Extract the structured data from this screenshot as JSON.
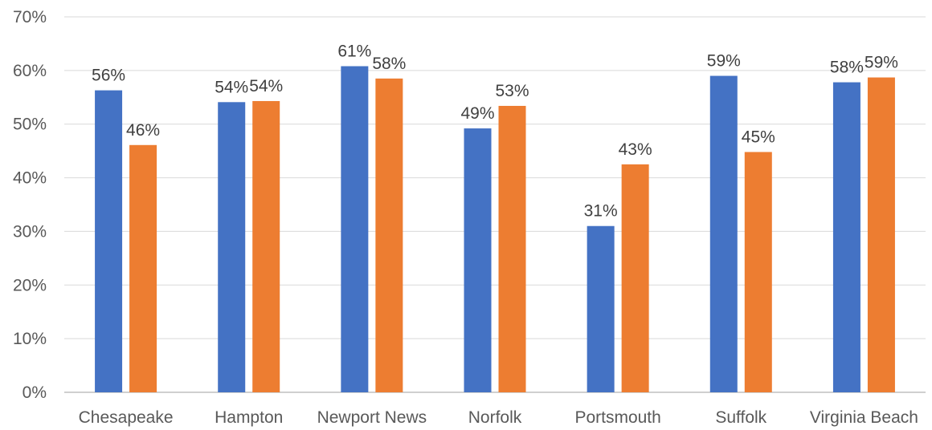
{
  "chart_data": {
    "type": "bar",
    "title": "",
    "xlabel": "",
    "ylabel": "",
    "ylim": [
      0,
      0.7
    ],
    "yticks": [
      0,
      0.1,
      0.2,
      0.3,
      0.4,
      0.5,
      0.6,
      0.7
    ],
    "ytick_labels": [
      "0%",
      "10%",
      "20%",
      "30%",
      "40%",
      "50%",
      "60%",
      "70%"
    ],
    "grid": true,
    "legend": "none",
    "categories": [
      "Chesapeake",
      "Hampton",
      "Newport News",
      "Norfolk",
      "Portsmouth",
      "Suffolk",
      "Virginia Beach"
    ],
    "series": [
      {
        "color": "#4472C4",
        "values": [
          0.563,
          0.541,
          0.608,
          0.492,
          0.31,
          0.59,
          0.578
        ],
        "labels": [
          "56%",
          "54%",
          "61%",
          "49%",
          "31%",
          "59%",
          "58%"
        ]
      },
      {
        "color": "#ED7D31",
        "values": [
          0.461,
          0.543,
          0.585,
          0.534,
          0.425,
          0.448,
          0.587
        ],
        "labels": [
          "46%",
          "54%",
          "58%",
          "53%",
          "43%",
          "45%",
          "59%"
        ]
      }
    ]
  }
}
